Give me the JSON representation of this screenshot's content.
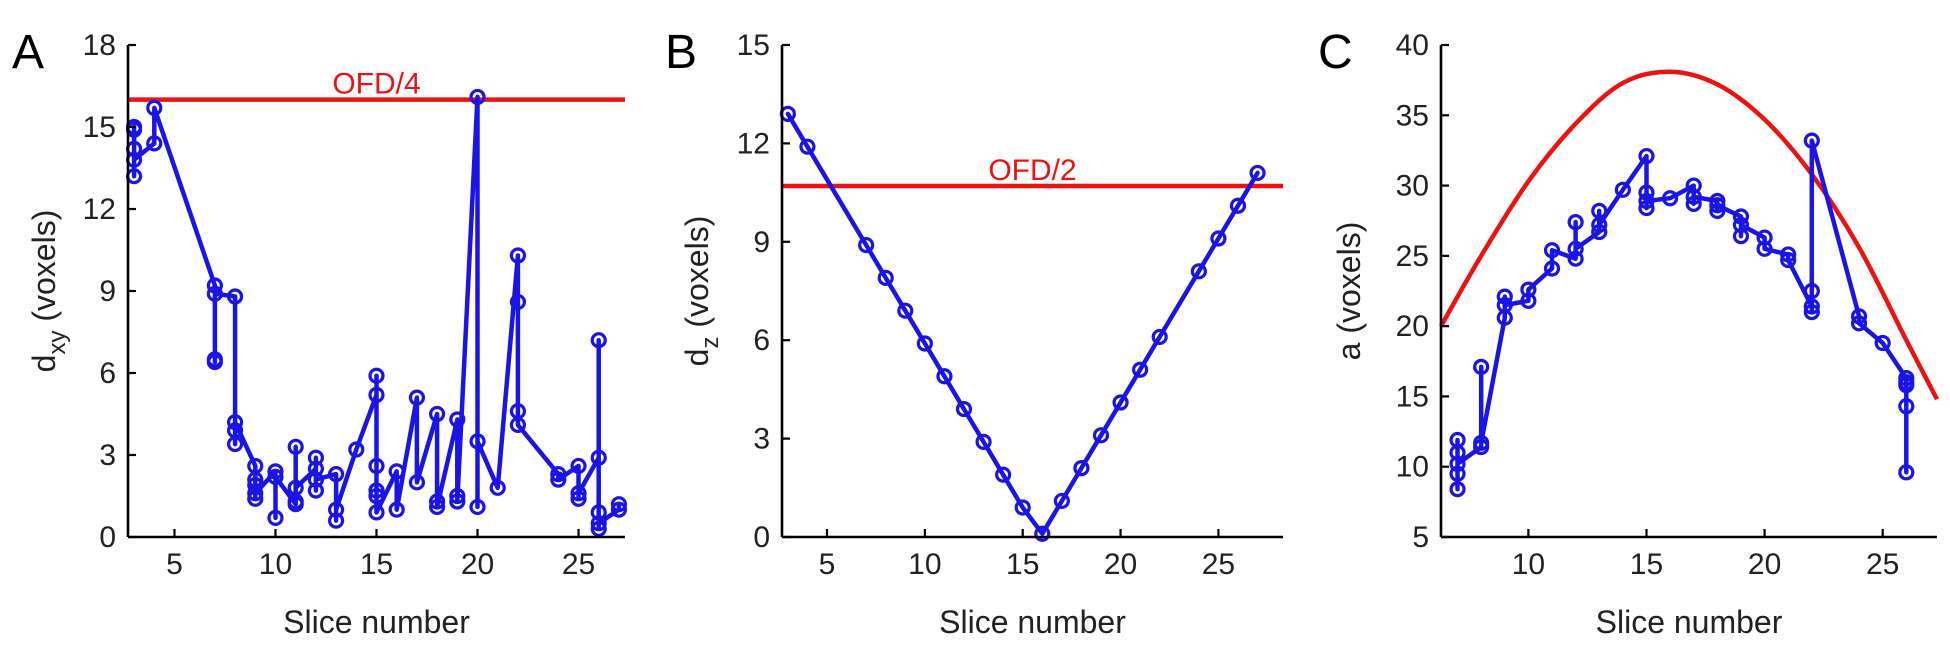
{
  "figure": {
    "colors": {
      "series": "#1a14e6",
      "reference": "#ee1111",
      "axis": "#000000"
    }
  },
  "chart_data": [
    {
      "type": "line",
      "panel_label": "A",
      "xlabel": "Slice number",
      "ylabel_main": "d",
      "ylabel_sub": "xy",
      "ylabel_rest": " (voxels)",
      "xlim": [
        2.7,
        27.3
      ],
      "ylim": [
        0,
        18
      ],
      "xticks": [
        5,
        10,
        15,
        20,
        25
      ],
      "yticks": [
        0,
        3,
        6,
        9,
        12,
        15,
        18
      ],
      "series": [
        {
          "name": "dxy",
          "points": [
            [
              3,
              14.9
            ],
            [
              3,
              13.2
            ],
            [
              3,
              14.2
            ],
            [
              3,
              15.0
            ],
            [
              3,
              13.8
            ],
            [
              4,
              14.4
            ],
            [
              4,
              15.7
            ],
            [
              7,
              9.2
            ],
            [
              7,
              6.4
            ],
            [
              7,
              6.5
            ],
            [
              7,
              8.9
            ],
            [
              8,
              8.8
            ],
            [
              8,
              3.9
            ],
            [
              8,
              3.4
            ],
            [
              8,
              4.2
            ],
            [
              9,
              2.6
            ],
            [
              9,
              1.4
            ],
            [
              9,
              1.9
            ],
            [
              9,
              2.1
            ],
            [
              9,
              1.6
            ],
            [
              10,
              2.4
            ],
            [
              10,
              0.7
            ],
            [
              10,
              2.2
            ],
            [
              11,
              1.2
            ],
            [
              11,
              3.3
            ],
            [
              11,
              1.3
            ],
            [
              11,
              1.8
            ],
            [
              12,
              2.5
            ],
            [
              12,
              2.9
            ],
            [
              12,
              1.7
            ],
            [
              12,
              2.1
            ],
            [
              13,
              2.3
            ],
            [
              13,
              0.6
            ],
            [
              13,
              1.0
            ],
            [
              14,
              3.2
            ],
            [
              15,
              5.2
            ],
            [
              15,
              5.9
            ],
            [
              15,
              1.5
            ],
            [
              15,
              1.7
            ],
            [
              15,
              2.6
            ],
            [
              15,
              0.9
            ],
            [
              16,
              2.4
            ],
            [
              16,
              1.0
            ],
            [
              17,
              5.1
            ],
            [
              17,
              2.0
            ],
            [
              18,
              4.5
            ],
            [
              18,
              1.3
            ],
            [
              18,
              1.1
            ],
            [
              19,
              4.3
            ],
            [
              19,
              1.5
            ],
            [
              19,
              1.3
            ],
            [
              20,
              16.1
            ],
            [
              20,
              1.1
            ],
            [
              20,
              3.5
            ],
            [
              21,
              1.8
            ],
            [
              22,
              10.3
            ],
            [
              22,
              8.6
            ],
            [
              22,
              4.6
            ],
            [
              22,
              4.1
            ],
            [
              24,
              2.3
            ],
            [
              24,
              2.1
            ],
            [
              25,
              2.6
            ],
            [
              25,
              1.4
            ],
            [
              25,
              1.6
            ],
            [
              26,
              2.9
            ],
            [
              26,
              7.2
            ],
            [
              26,
              0.3
            ],
            [
              26,
              0.9
            ],
            [
              26,
              0.5
            ],
            [
              27,
              1.0
            ],
            [
              27,
              1.2
            ]
          ]
        }
      ],
      "reference": {
        "type": "hline",
        "y": 16,
        "x_range": [
          2.7,
          27.3
        ],
        "label": "OFD/4"
      }
    },
    {
      "type": "line",
      "panel_label": "B",
      "xlabel": "Slice number",
      "ylabel_main": "d",
      "ylabel_sub": "z",
      "ylabel_rest": " (voxels)",
      "xlim": [
        2.7,
        28.3
      ],
      "ylim": [
        0,
        15
      ],
      "xticks": [
        5,
        10,
        15,
        20,
        25
      ],
      "yticks": [
        0,
        3,
        6,
        9,
        12,
        15
      ],
      "series": [
        {
          "name": "dz",
          "points": [
            [
              3,
              12.9
            ],
            [
              4,
              11.9
            ],
            [
              7,
              8.9
            ],
            [
              8,
              7.9
            ],
            [
              9,
              6.9
            ],
            [
              10,
              5.9
            ],
            [
              11,
              4.9
            ],
            [
              12,
              3.9
            ],
            [
              13,
              2.9
            ],
            [
              14,
              1.9
            ],
            [
              15,
              0.9
            ],
            [
              16,
              0.1
            ],
            [
              17,
              1.1
            ],
            [
              18,
              2.1
            ],
            [
              19,
              3.1
            ],
            [
              20,
              4.1
            ],
            [
              21,
              5.1
            ],
            [
              22,
              6.1
            ],
            [
              24,
              8.1
            ],
            [
              25,
              9.1
            ],
            [
              26,
              10.1
            ],
            [
              27,
              11.1
            ]
          ]
        }
      ],
      "reference": {
        "type": "hline",
        "y": 10.7,
        "x_range": [
          2.7,
          28.3
        ],
        "label": "OFD/2"
      }
    },
    {
      "type": "line",
      "panel_label": "C",
      "xlabel": "Slice number",
      "ylabel_main": "a",
      "ylabel_sub": "",
      "ylabel_rest": " (voxels)",
      "xlim": [
        6.3,
        27.3
      ],
      "ylim": [
        5,
        40
      ],
      "xticks": [
        10,
        15,
        20,
        25
      ],
      "yticks": [
        5,
        10,
        15,
        20,
        25,
        30,
        35,
        40
      ],
      "series": [
        {
          "name": "a",
          "points": [
            [
              7,
              8.4
            ],
            [
              7,
              11.9
            ],
            [
              7,
              9.5
            ],
            [
              7,
              11.0
            ],
            [
              7,
              10.2
            ],
            [
              8,
              11.4
            ],
            [
              8,
              17.1
            ],
            [
              8,
              11.7
            ],
            [
              9,
              20.6
            ],
            [
              9,
              22.1
            ],
            [
              9,
              21.5
            ],
            [
              10,
              21.8
            ],
            [
              10,
              22.6
            ],
            [
              11,
              24.1
            ],
            [
              11,
              25.4
            ],
            [
              12,
              24.8
            ],
            [
              12,
              27.4
            ],
            [
              12,
              25.5
            ],
            [
              13,
              26.7
            ],
            [
              13,
              28.2
            ],
            [
              13,
              27.2
            ],
            [
              14,
              29.7
            ],
            [
              15,
              32.1
            ],
            [
              15,
              28.4
            ],
            [
              15,
              29.5
            ],
            [
              15,
              28.9
            ],
            [
              16,
              29.1
            ],
            [
              17,
              30.0
            ],
            [
              17,
              28.7
            ],
            [
              17,
              29.2
            ],
            [
              18,
              28.9
            ],
            [
              18,
              28.2
            ],
            [
              18,
              28.6
            ],
            [
              19,
              27.8
            ],
            [
              19,
              26.4
            ],
            [
              19,
              27.2
            ],
            [
              20,
              26.3
            ],
            [
              20,
              25.5
            ],
            [
              21,
              25.1
            ],
            [
              21,
              24.7
            ],
            [
              22,
              21.4
            ],
            [
              22,
              22.5
            ],
            [
              22,
              21.0
            ],
            [
              22,
              33.2
            ],
            [
              24,
              20.7
            ],
            [
              24,
              20.2
            ],
            [
              25,
              18.8
            ],
            [
              26,
              16.3
            ],
            [
              26,
              9.6
            ],
            [
              26,
              14.3
            ],
            [
              26,
              15.8
            ],
            [
              26,
              16.0
            ]
          ]
        }
      ],
      "reference": {
        "type": "curve",
        "label": "",
        "points": [
          [
            6.3,
            20.0
          ],
          [
            8,
            25.0
          ],
          [
            10,
            30.3
          ],
          [
            12,
            34.4
          ],
          [
            14,
            37.3
          ],
          [
            16,
            38.1
          ],
          [
            18,
            37.2
          ],
          [
            20,
            34.7
          ],
          [
            22,
            30.8
          ],
          [
            24,
            25.6
          ],
          [
            26,
            19.0
          ],
          [
            27.3,
            14.8
          ]
        ]
      }
    }
  ]
}
